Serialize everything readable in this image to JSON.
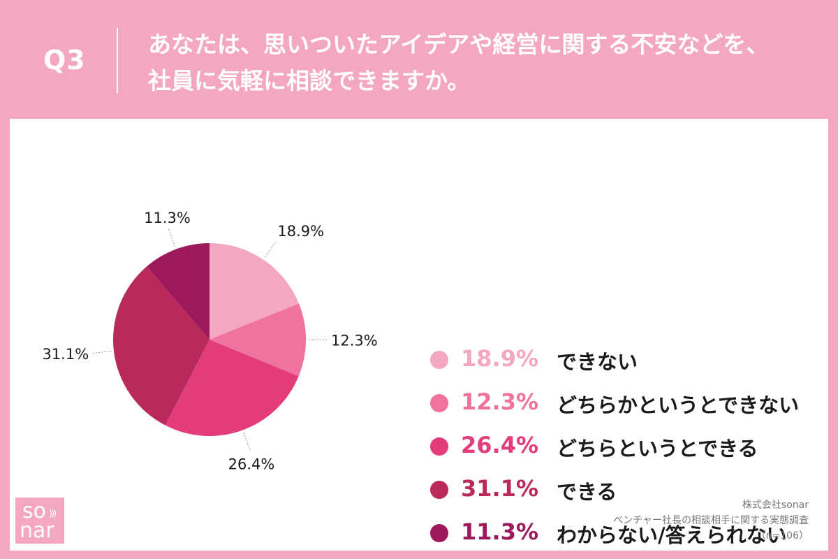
{
  "header": {
    "q_label": "Q3",
    "title_line1": "あなたは、思いついたアイデアや経営に関する不安などを、",
    "title_line2": "社員に気軽に相談できますか。"
  },
  "chart_data": {
    "type": "pie",
    "title": "",
    "slices": [
      {
        "label": "できない",
        "value": 18.9,
        "display": "18.9%",
        "color": "#f4a7c1"
      },
      {
        "label": "どちらかというとできない",
        "value": 12.3,
        "display": "12.3%",
        "color": "#ee739f"
      },
      {
        "label": "どちらというとできる",
        "value": 26.4,
        "display": "26.4%",
        "color": "#e33c7b"
      },
      {
        "label": "できる",
        "value": 31.1,
        "display": "31.1%",
        "color": "#b9295c"
      },
      {
        "label": "わからない/答えられない",
        "value": 11.3,
        "display": "11.3%",
        "color": "#9c1a5c"
      }
    ],
    "start_angle_deg": 0,
    "direction": "clockwise",
    "legend_position": "right"
  },
  "brand": {
    "logo_line1": "so",
    "logo_line2": "nar",
    "logo_waves": ")))"
  },
  "source": {
    "company": "株式会社sonar",
    "survey": "ベンチャー社長の相談相手に関する実態調査",
    "sample": "（n=106）"
  }
}
